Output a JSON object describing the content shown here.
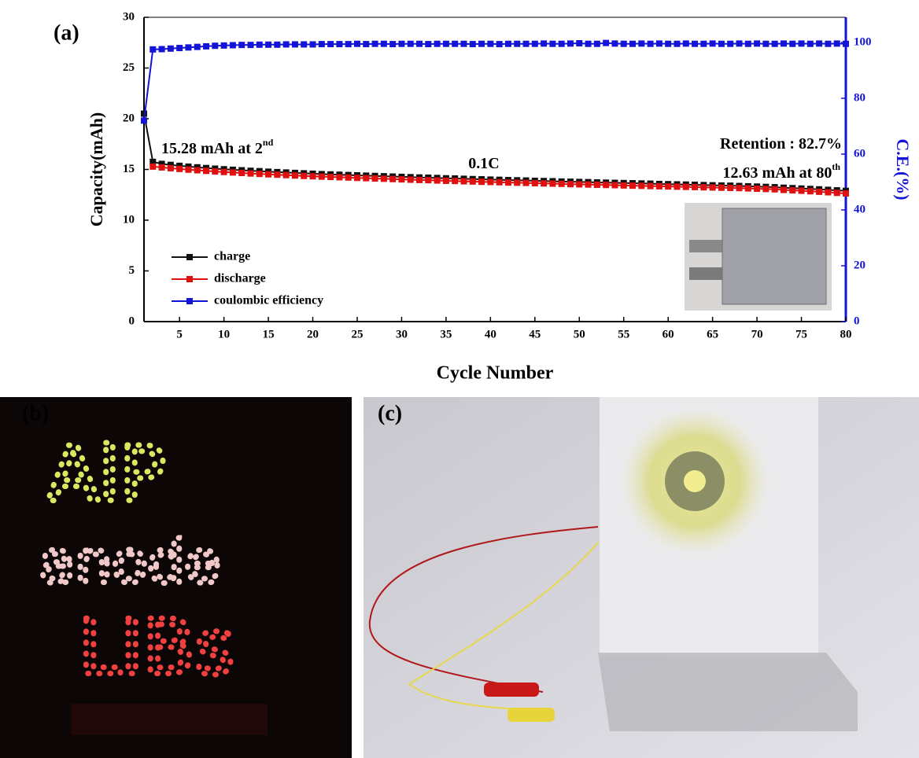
{
  "panel_labels": [
    "(a)",
    "(b)",
    "(c)"
  ],
  "led_sign": [
    "AlP",
    "anode",
    "LIBs"
  ],
  "chart_data": {
    "type": "line",
    "xlabel": "Cycle Number",
    "ylabel": "Capacity(mAh)",
    "y2label": "C.E.(%)",
    "x": [
      1,
      2,
      3,
      4,
      5,
      6,
      7,
      8,
      9,
      10,
      11,
      12,
      13,
      14,
      15,
      16,
      17,
      18,
      19,
      20,
      21,
      22,
      23,
      24,
      25,
      26,
      27,
      28,
      29,
      30,
      31,
      32,
      33,
      34,
      35,
      36,
      37,
      38,
      39,
      40,
      41,
      42,
      43,
      44,
      45,
      46,
      47,
      48,
      49,
      50,
      51,
      52,
      53,
      54,
      55,
      56,
      57,
      58,
      59,
      60,
      61,
      62,
      63,
      64,
      65,
      66,
      67,
      68,
      69,
      70,
      71,
      72,
      73,
      74,
      75,
      76,
      77,
      78,
      79,
      80
    ],
    "xlim": [
      1,
      80
    ],
    "xticks": [
      5,
      10,
      15,
      20,
      25,
      30,
      35,
      40,
      45,
      50,
      55,
      60,
      65,
      70,
      75,
      80
    ],
    "ylim": [
      0,
      30
    ],
    "yticks": [
      0,
      5,
      10,
      15,
      20,
      25,
      30
    ],
    "y2lim": [
      0,
      109
    ],
    "y2ticks": [
      0,
      20,
      40,
      60,
      80,
      100
    ],
    "y2color": "#1414d8",
    "legend": "lower left",
    "series": [
      {
        "name": "charge",
        "color": "#111111",
        "values": [
          20.5,
          15.75,
          15.55,
          15.45,
          15.36,
          15.28,
          15.21,
          15.14,
          15.08,
          15.02,
          14.97,
          14.92,
          14.87,
          14.83,
          14.78,
          14.74,
          14.7,
          14.66,
          14.62,
          14.58,
          14.54,
          14.51,
          14.48,
          14.45,
          14.42,
          14.39,
          14.36,
          14.33,
          14.3,
          14.27,
          14.24,
          14.21,
          14.19,
          14.16,
          14.13,
          14.11,
          14.08,
          14.05,
          14.03,
          14.0,
          13.98,
          13.95,
          13.93,
          13.91,
          13.88,
          13.86,
          13.84,
          13.81,
          13.79,
          13.77,
          13.75,
          13.72,
          13.7,
          13.68,
          13.66,
          13.64,
          13.62,
          13.6,
          13.57,
          13.55,
          13.53,
          13.51,
          13.49,
          13.46,
          13.44,
          13.42,
          13.4,
          13.37,
          13.34,
          13.31,
          13.28,
          13.25,
          13.2,
          13.16,
          13.12,
          13.08,
          13.04,
          12.99,
          12.94,
          12.89
        ]
      },
      {
        "name": "discharge",
        "color": "#e01010",
        "values": [
          null,
          15.28,
          15.2,
          15.12,
          15.05,
          14.98,
          14.92,
          14.86,
          14.8,
          14.75,
          14.7,
          14.65,
          14.6,
          14.56,
          14.52,
          14.48,
          14.44,
          14.4,
          14.36,
          14.32,
          14.29,
          14.26,
          14.23,
          14.2,
          14.17,
          14.14,
          14.11,
          14.08,
          14.05,
          14.02,
          13.99,
          13.96,
          13.94,
          13.91,
          13.88,
          13.86,
          13.83,
          13.81,
          13.78,
          13.76,
          13.74,
          13.71,
          13.69,
          13.67,
          13.64,
          13.62,
          13.6,
          13.58,
          13.55,
          13.53,
          13.51,
          13.49,
          13.47,
          13.45,
          13.42,
          13.4,
          13.38,
          13.36,
          13.34,
          13.32,
          13.3,
          13.28,
          13.26,
          13.24,
          13.22,
          13.2,
          13.18,
          13.16,
          13.13,
          13.1,
          13.07,
          13.04,
          12.98,
          12.94,
          12.9,
          12.85,
          12.8,
          12.75,
          12.69,
          12.63
        ]
      },
      {
        "name": "coulombic efficiency",
        "color": "#1414d8",
        "axis": "y2",
        "values": [
          72,
          97.5,
          97.6,
          97.8,
          98,
          98.2,
          98.4,
          98.6,
          98.8,
          98.9,
          99,
          99.1,
          99.1,
          99.2,
          99.2,
          99.2,
          99.3,
          99.3,
          99.3,
          99.3,
          99.4,
          99.4,
          99.4,
          99.4,
          99.5,
          99.4,
          99.5,
          99.5,
          99.4,
          99.5,
          99.5,
          99.5,
          99.4,
          99.5,
          99.5,
          99.5,
          99.5,
          99.4,
          99.5,
          99.5,
          99.4,
          99.5,
          99.5,
          99.5,
          99.5,
          99.6,
          99.5,
          99.5,
          99.6,
          99.7,
          99.5,
          99.5,
          99.8,
          99.6,
          99.5,
          99.5,
          99.6,
          99.5,
          99.6,
          99.5,
          99.5,
          99.6,
          99.5,
          99.5,
          99.6,
          99.5,
          99.5,
          99.6,
          99.5,
          99.6,
          99.5,
          99.5,
          99.6,
          99.5,
          99.6,
          99.5,
          99.6,
          99.5,
          99.6,
          99.5
        ]
      }
    ],
    "annotations": [
      {
        "text": "15.28 mAh at 2",
        "sup": "nd"
      },
      {
        "text": "0.1C"
      },
      {
        "text": "Retention : 82.7%"
      },
      {
        "text": "12.63 mAh at 80",
        "sup": "th"
      }
    ]
  }
}
